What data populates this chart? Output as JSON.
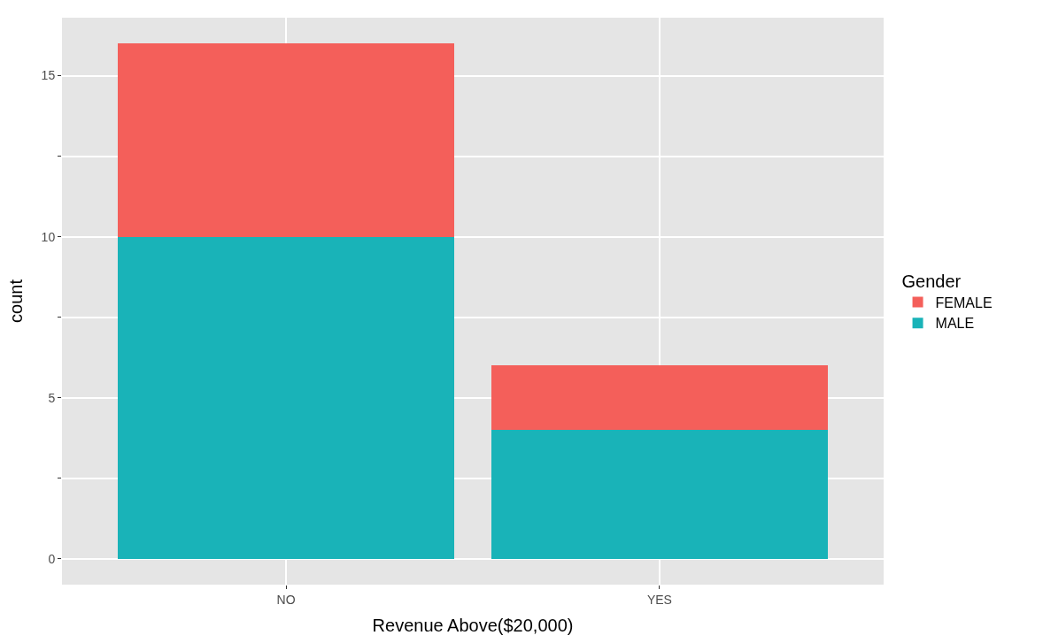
{
  "chart_data": {
    "type": "bar",
    "stacked": true,
    "xlabel": "Revenue Above($20,000)",
    "ylabel": "count",
    "legend_title": "Gender",
    "categories": [
      "NO",
      "YES"
    ],
    "series": [
      {
        "name": "MALE",
        "color": "#19b3b8",
        "values": [
          10,
          4
        ]
      },
      {
        "name": "FEMALE",
        "color": "#f45f5a",
        "values": [
          6,
          2
        ]
      }
    ],
    "ylim": [
      -0.8,
      16.8
    ],
    "yticks": [
      0,
      {
        "value": 2.5,
        "label": null
      },
      5,
      {
        "value": 7.5,
        "label": null
      },
      10,
      {
        "value": 12.5,
        "label": null
      },
      15
    ],
    "grid": true,
    "legend": "right"
  }
}
